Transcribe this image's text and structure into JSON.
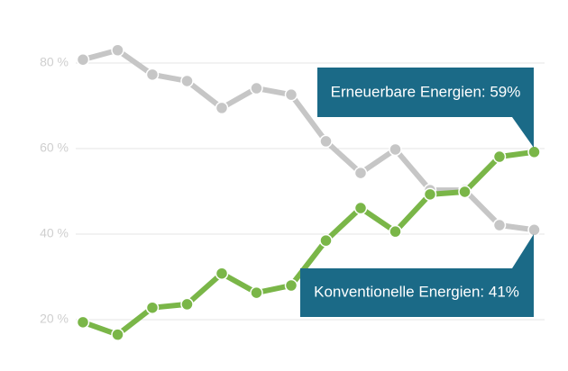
{
  "chart_data": {
    "type": "line",
    "series": [
      {
        "name": "Konventionelle Energien",
        "color": "#c6c6c6",
        "values": [
          80.8,
          83,
          77.3,
          75.8,
          69.5,
          74.1,
          72.6,
          61.7,
          54.3,
          59.8,
          50.3,
          50.3,
          42.1,
          41
        ]
      },
      {
        "name": "Erneuerbare Energien",
        "color": "#7ab648",
        "values": [
          19.4,
          16.5,
          22.8,
          23.6,
          30.8,
          26.3,
          28,
          38.5,
          46.1,
          40.6,
          49.3,
          49.9,
          58.1,
          59.2
        ]
      }
    ],
    "ylim": [
      12,
      88
    ],
    "yticks": [
      {
        "value": 20,
        "label": "20 %"
      },
      {
        "value": 40,
        "label": "40 %"
      },
      {
        "value": 60,
        "label": "60 %"
      },
      {
        "value": 80,
        "label": "80 %"
      }
    ],
    "grid": true,
    "annotations": [
      "Erneuerbare Energien: 59%",
      "Konventionelle Energien: 41%"
    ]
  }
}
